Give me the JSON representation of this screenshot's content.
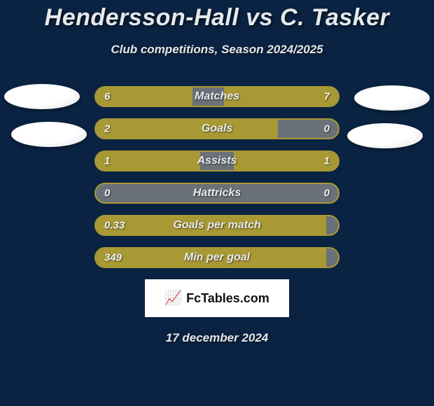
{
  "header": {
    "title": "Hendersson-Hall vs C. Tasker",
    "subtitle": "Club competitions, Season 2024/2025"
  },
  "colors": {
    "page_bg": "#0a2342",
    "bar_border": "#a99935",
    "bar_fill": "#a99935",
    "bar_track": "#6b7178",
    "text": "#e6e8ea",
    "logo_bg": "#ffffff",
    "logo_text": "#111111"
  },
  "bars": [
    {
      "label": "Matches",
      "left_val": "6",
      "right_val": "7",
      "left_pct": 40,
      "right_pct": 47
    },
    {
      "label": "Goals",
      "left_val": "2",
      "right_val": "0",
      "left_pct": 75,
      "right_pct": 0
    },
    {
      "label": "Assists",
      "left_val": "1",
      "right_val": "1",
      "left_pct": 43,
      "right_pct": 43
    },
    {
      "label": "Hattricks",
      "left_val": "0",
      "right_val": "0",
      "left_pct": 0,
      "right_pct": 0
    },
    {
      "label": "Goals per match",
      "left_val": "0.33",
      "right_val": "",
      "left_pct": 95,
      "right_pct": 0
    },
    {
      "label": "Min per goal",
      "left_val": "349",
      "right_val": "",
      "left_pct": 95,
      "right_pct": 0
    }
  ],
  "footer": {
    "brand": "FcTables.com",
    "date": "17 december 2024"
  }
}
